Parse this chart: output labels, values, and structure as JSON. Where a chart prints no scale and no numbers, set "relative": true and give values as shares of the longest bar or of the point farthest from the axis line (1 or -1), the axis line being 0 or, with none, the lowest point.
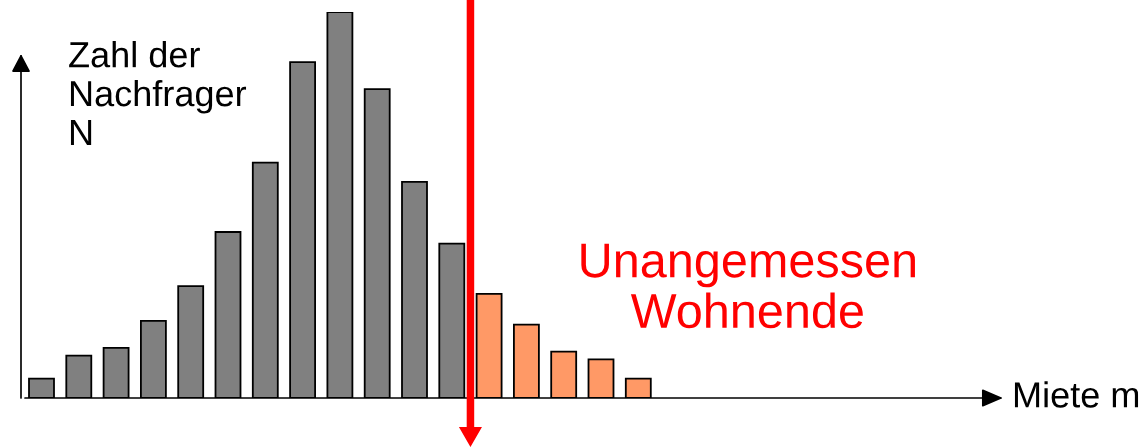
{
  "chart_data": {
    "type": "bar",
    "relative": true,
    "ylabel": "Zahl der\nNachfrager\nN",
    "categories": [
      null,
      null,
      null,
      null,
      null,
      null,
      null,
      null,
      null,
      null,
      null,
      null,
      null,
      null,
      null,
      null,
      null
    ],
    "values": [
      0.05,
      0.11,
      0.13,
      0.2,
      0.29,
      0.43,
      0.61,
      0.87,
      1,
      0.8,
      0.56,
      0.4,
      0.27,
      0.19,
      0.12,
      0.1,
      0.05
    ],
    "colors": [
      "#808080",
      "#808080",
      "#808080",
      "#808080",
      "#808080",
      "#808080",
      "#808080",
      "#808080",
      "#808080",
      "#808080",
      "#808080",
      "#808080",
      "#ff9966",
      "#ff9966",
      "#ff9966",
      "#ff9966",
      "#ff9966"
    ],
    "annotations": [
      "Unangemessen\nWohnende",
      "Miete m"
    ]
  }
}
